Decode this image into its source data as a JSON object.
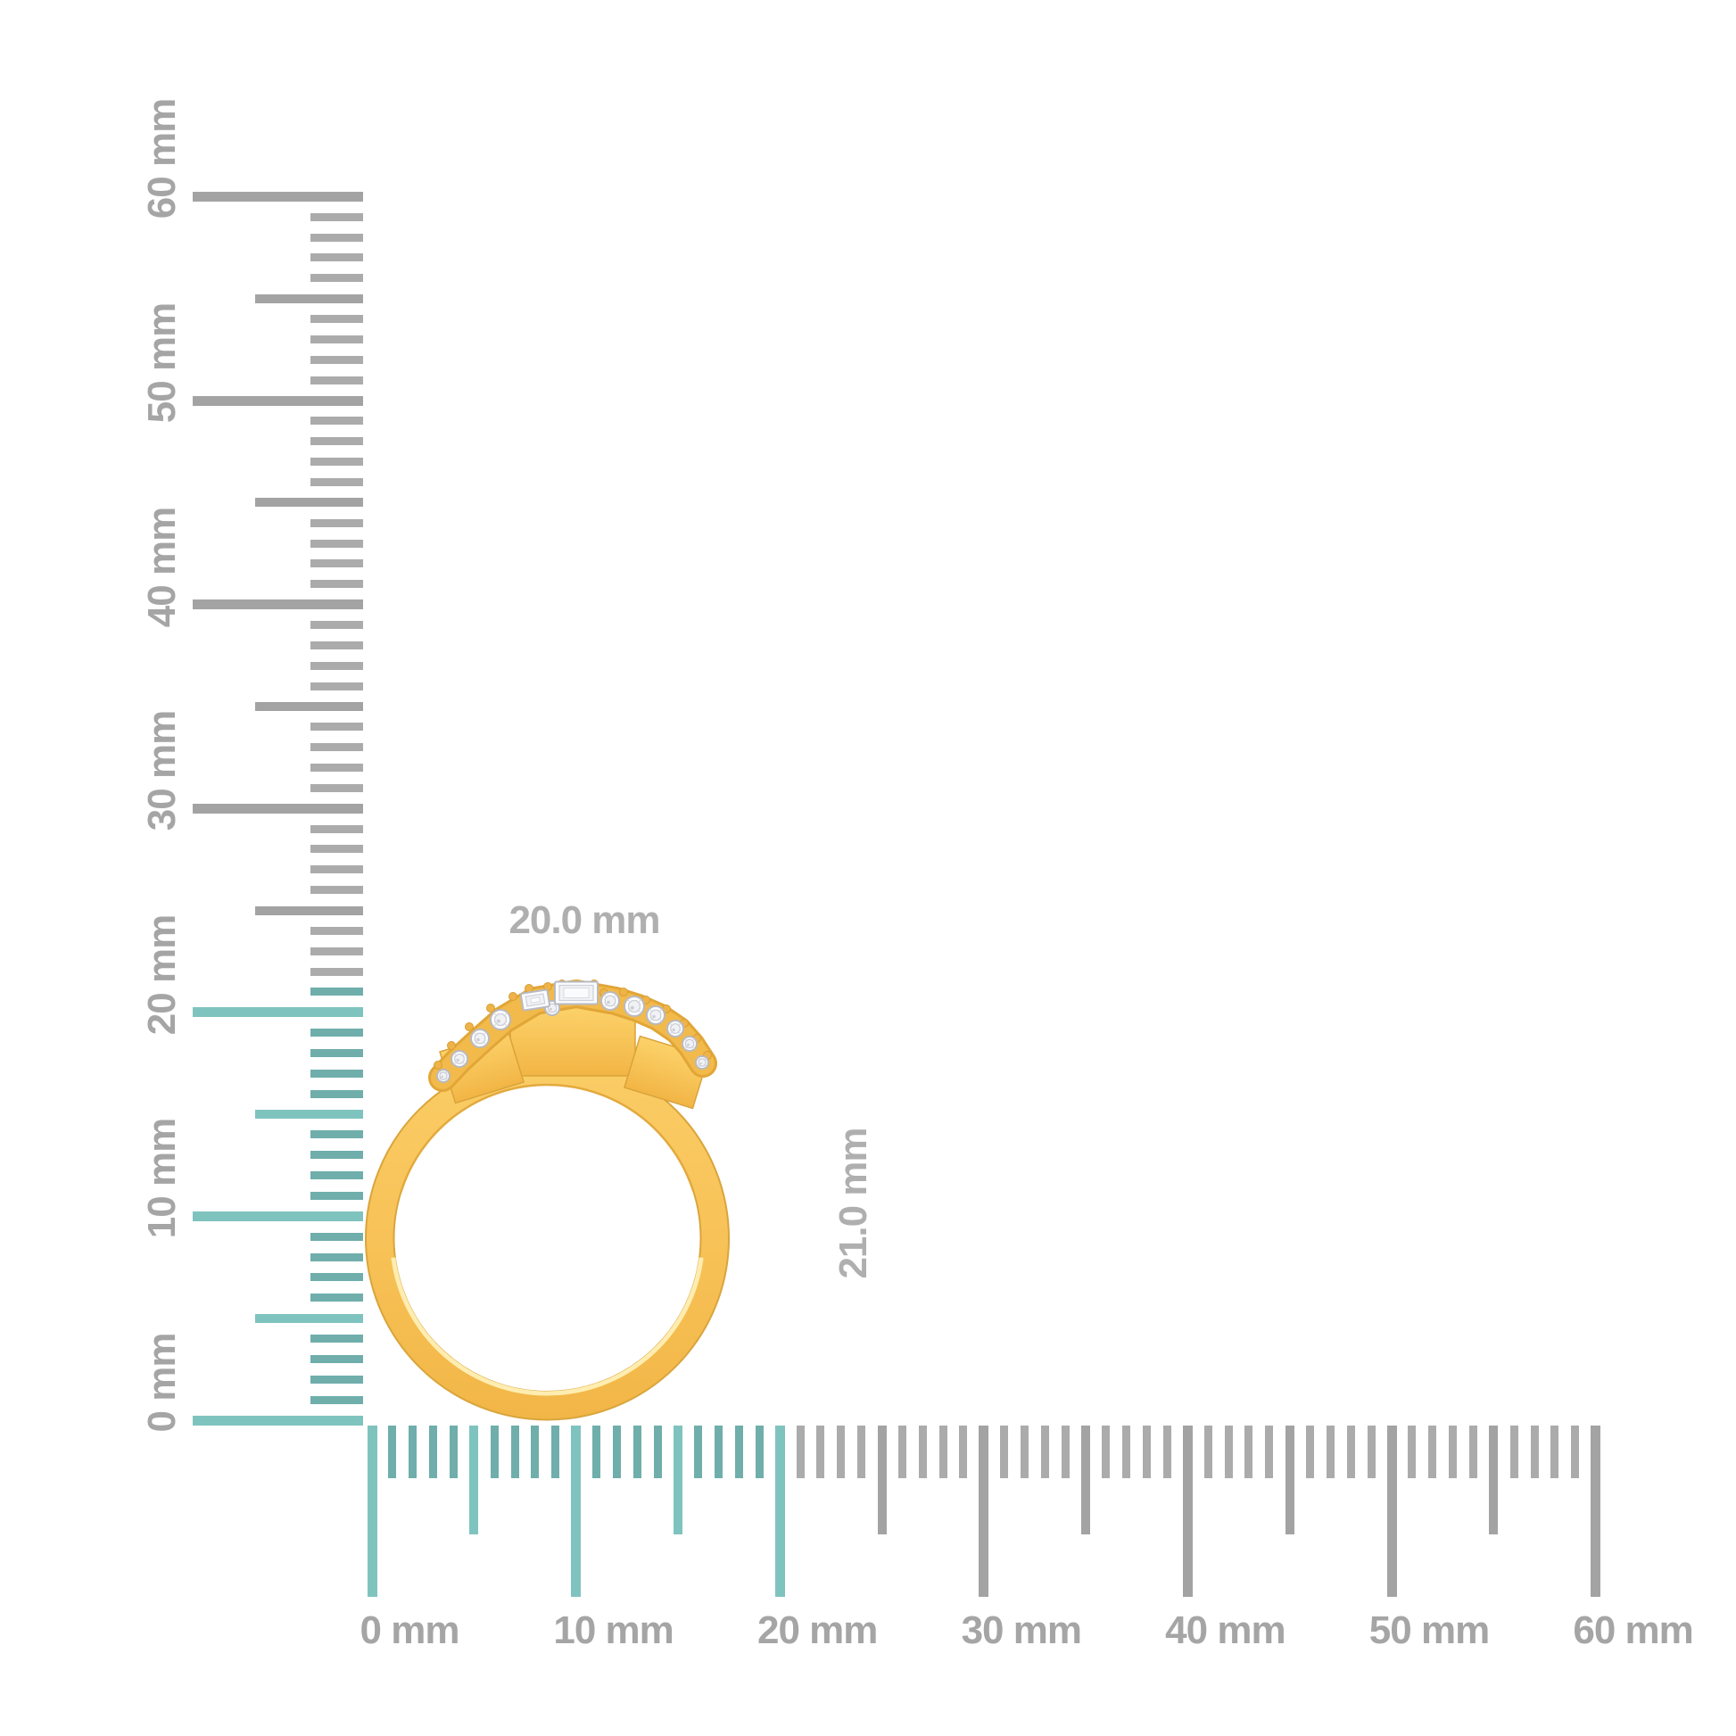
{
  "image": {
    "description": "Side view of a yellow gold ring with a cluster of round diamonds and baguette diamonds, shown against millimeter rulers",
    "background": "#ffffff"
  },
  "product": {
    "name": "gold-diamond-ring-side-view",
    "width_label": "20.0 mm",
    "height_label": "21.0 mm"
  },
  "rulers": {
    "unit": "mm",
    "vertical": {
      "min_mm": 0,
      "max_mm": 60,
      "major_step_mm": 10,
      "medium_step_mm": 5,
      "minor_step_mm": 1,
      "highlight_up_to_mm": 21,
      "labels": [
        "0 mm",
        "10 mm",
        "20 mm",
        "30 mm",
        "40 mm",
        "50 mm",
        "60 mm"
      ]
    },
    "horizontal": {
      "min_mm": 0,
      "max_mm": 60,
      "major_step_mm": 10,
      "medium_step_mm": 5,
      "minor_step_mm": 1,
      "highlight_up_to_mm": 20,
      "labels": [
        "0 mm",
        "10 mm",
        "20 mm",
        "30 mm",
        "40 mm",
        "50 mm",
        "60 mm"
      ]
    }
  },
  "colors": {
    "highlight_teal_minor": "#6FAEAB",
    "highlight_teal_major": "#7FC3BF",
    "tick_gray_minor": "#ABABAB",
    "tick_gray_major": "#A3A3A3",
    "ruler_label_gray": "#A5A5A5",
    "dimension_label_gray": "#AFAFAF",
    "gold_light": "#FBCD66",
    "gold_mid": "#F7C156",
    "gold_deep": "#F2B647",
    "gold_edge": "#D9A53C",
    "gold_highlight": "#FFEDB0",
    "prong_gold": "#EFB349",
    "diamond_white": "#FDFDFE",
    "diamond_facet": "#C8CBD3",
    "diamond_girdle": "#B7BAC2"
  }
}
